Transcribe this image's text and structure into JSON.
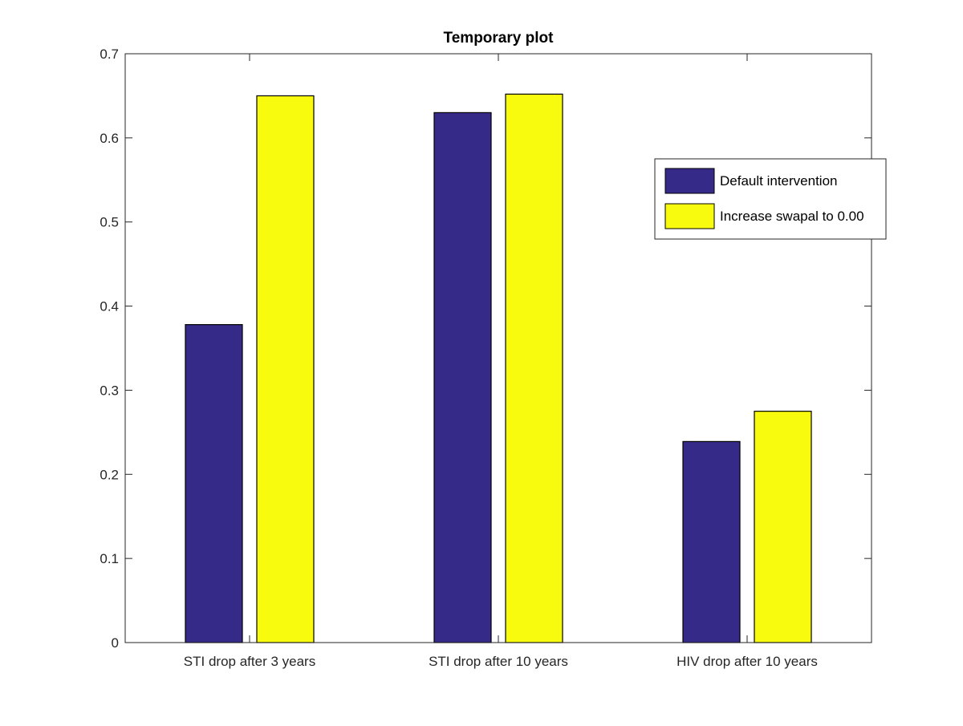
{
  "chart_data": {
    "type": "bar",
    "title": "Temporary plot",
    "xlabel": "",
    "ylabel": "",
    "categories": [
      "STI drop after 3 years",
      "STI drop after 10 years",
      "HIV drop after 10 years"
    ],
    "series": [
      {
        "name": "Default intervention",
        "values": [
          0.378,
          0.63,
          0.239
        ],
        "color": "#352a87"
      },
      {
        "name": "Increase swapal to 0.00",
        "values": [
          0.65,
          0.652,
          0.275
        ],
        "color": "#f9fb0e"
      }
    ],
    "ylim": [
      0,
      0.7
    ],
    "yticks": [
      "0",
      "0.1",
      "0.2",
      "0.3",
      "0.4",
      "0.5",
      "0.6",
      "0.7"
    ],
    "grid": false,
    "legend_position": "top-right"
  }
}
